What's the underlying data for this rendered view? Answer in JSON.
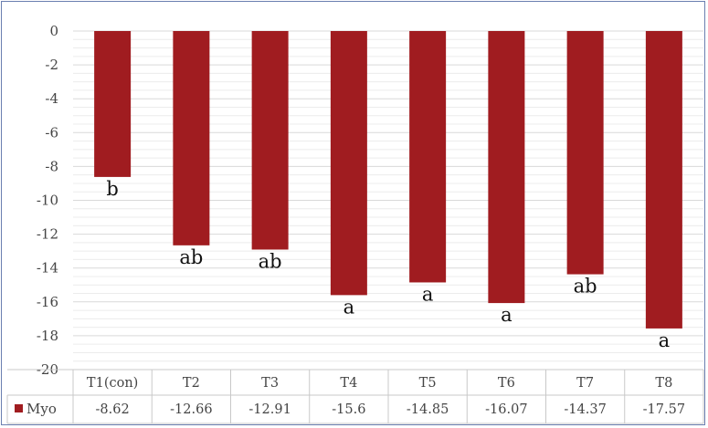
{
  "chart_data": {
    "type": "bar",
    "categories": [
      "T1(con)",
      "T2",
      "T3",
      "T4",
      "T5",
      "T6",
      "T7",
      "T8"
    ],
    "series": [
      {
        "name": "Myo",
        "values": [
          -8.62,
          -12.66,
          -12.91,
          -15.6,
          -14.85,
          -16.07,
          -14.37,
          -17.57
        ],
        "value_labels": [
          "-8.62",
          "-12.66",
          "-12.91",
          "-15.6",
          "-14.85",
          "-16.07",
          "-14.37",
          "-17.57"
        ],
        "significance": [
          "b",
          "ab",
          "ab",
          "a",
          "a",
          "a",
          "ab",
          "a"
        ],
        "color": "#a01c20"
      }
    ],
    "ylim": [
      -20,
      0
    ],
    "yticks": [
      0,
      -2,
      -4,
      -6,
      -8,
      -10,
      -12,
      -14,
      -16,
      -18,
      -20
    ],
    "ytick_labels": [
      "0",
      "-2",
      "-4",
      "-6",
      "-8",
      "-10",
      "-12",
      "-14",
      "-16",
      "-18",
      "-20"
    ],
    "grid": "minor horizontal gridlines",
    "legend": "data table at bottom with legend key",
    "title": "",
    "xlabel": "",
    "ylabel": ""
  }
}
